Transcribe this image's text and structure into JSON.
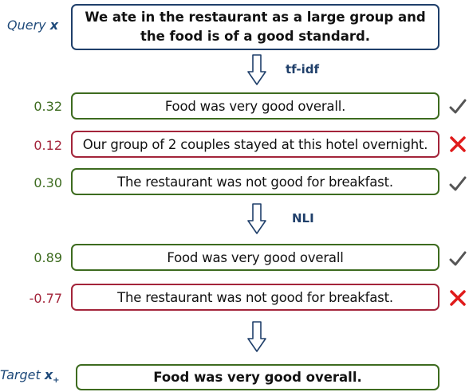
{
  "query": {
    "label": "Query",
    "var": "x",
    "text": "We ate in the restaurant as a large group and the food is of a good standard."
  },
  "step1": {
    "label": "tf-idf"
  },
  "retrieved": [
    {
      "score": "0.32",
      "text": "Food was very good overall.",
      "status": "accept"
    },
    {
      "score": "0.12",
      "text": "Our group of 2 couples stayed at this hotel overnight.",
      "status": "reject"
    },
    {
      "score": "0.30",
      "text": "The restaurant was not good for breakfast.",
      "status": "accept"
    }
  ],
  "step2": {
    "label": "NLI"
  },
  "nli": [
    {
      "score": "0.89",
      "text": "Food was very good overall",
      "status": "accept"
    },
    {
      "score": "-0.77",
      "text": "The restaurant was not good for breakfast.",
      "status": "reject"
    }
  ],
  "target": {
    "label": "Target",
    "var": "x",
    "sub": "+",
    "text": "Food was very good overall."
  },
  "colors": {
    "accept": "#3d6b1f",
    "reject": "#a3243a",
    "query": "#1f3f6a",
    "check": "#555555",
    "cross": "#e01b1b"
  },
  "icons": {
    "accept": "check-icon",
    "reject": "cross-icon",
    "flow": "down-arrow-icon"
  }
}
